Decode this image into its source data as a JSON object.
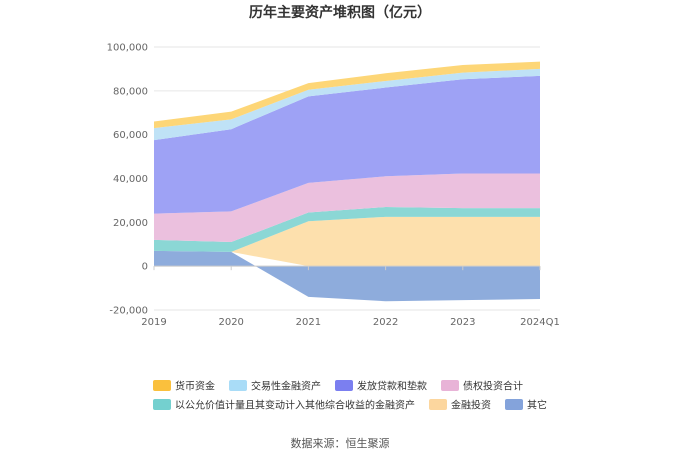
{
  "chart_data": {
    "type": "area",
    "title": "历年主要资产堆积图（亿元）",
    "categories": [
      "2019",
      "2020",
      "2021",
      "2022",
      "2023",
      "2024Q1"
    ],
    "ylim": [
      -20000,
      100000
    ],
    "yticks": [
      -20000,
      0,
      20000,
      40000,
      60000,
      80000,
      100000
    ],
    "ytick_labels": [
      "-20,000",
      "0",
      "20,000",
      "40,000",
      "60,000",
      "80,000",
      "100,000"
    ],
    "grid": true,
    "legend_position": "bottom",
    "series": [
      {
        "name": "其它",
        "color": "#8eacdc",
        "values": [
          7000,
          6500,
          -14000,
          -16000,
          -15500,
          -15000
        ]
      },
      {
        "name": "金融投资",
        "color": "#fde0ad",
        "values": [
          0,
          0,
          20500,
          22500,
          22500,
          22500
        ]
      },
      {
        "name": "以公允价值计量且其变动计入其他综合收益的金融资产",
        "color": "#8bd7d5",
        "values": [
          5000,
          4500,
          4000,
          4500,
          4000,
          4000
        ]
      },
      {
        "name": "债权投资合计",
        "color": "#ebc0de",
        "values": [
          12000,
          14000,
          13500,
          14000,
          15800,
          15800
        ]
      },
      {
        "name": "发放贷款和垫款",
        "color": "#9ea2f5",
        "values": [
          33500,
          37500,
          39500,
          40500,
          43000,
          44500
        ]
      },
      {
        "name": "交易性金融资产",
        "color": "#bfe2f6",
        "values": [
          5500,
          4500,
          3000,
          3000,
          3000,
          3200
        ]
      },
      {
        "name": "货币资金",
        "color": "#fdd677",
        "values": [
          3000,
          3500,
          3000,
          3500,
          3500,
          3300
        ]
      }
    ],
    "legend": [
      {
        "name": "货币资金",
        "color": "#fac03d"
      },
      {
        "name": "交易性金融资产",
        "color": "#a9dcf7"
      },
      {
        "name": "发放贷款和垫款",
        "color": "#7b7ff0"
      },
      {
        "name": "债权投资合计",
        "color": "#e8b3d7"
      },
      {
        "name": "以公允价值计量且其变动计入其他综合收益的金融资产",
        "color": "#74d0cf"
      },
      {
        "name": "金融投资",
        "color": "#fcd69e"
      },
      {
        "name": "其它",
        "color": "#84a3db"
      }
    ]
  },
  "footer": {
    "source_text": "数据来源：恒生聚源"
  }
}
